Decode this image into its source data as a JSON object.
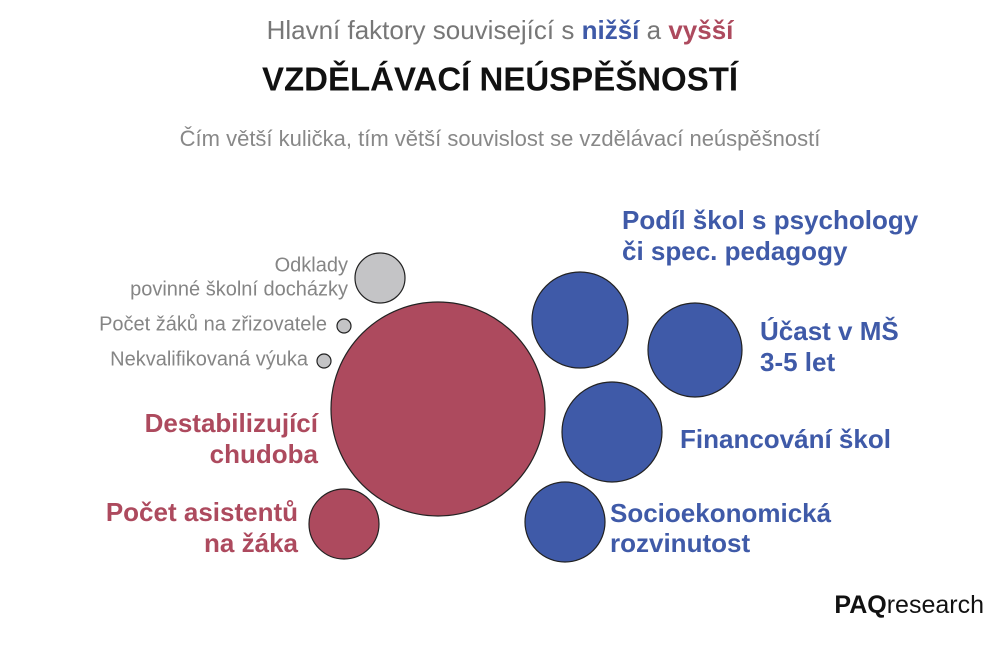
{
  "header": {
    "title_prefix": "Hlavní faktory související s",
    "title_lower": "nižší",
    "title_and": "a",
    "title_higher": "vyšší",
    "title_main": "VZDĚLÁVACÍ NEÚSPĚŠNOSTÍ",
    "subtitle": "Čím větší kulička, tím větší souvislost se vzdělávací neúspěšností"
  },
  "nodes": [
    {
      "label": [
        "Odklady",
        "povinné školní docházky"
      ]
    },
    {
      "label": [
        "Počet žáků na zřizovatele"
      ]
    },
    {
      "label": [
        "Nekvalifikovaná výuka"
      ]
    },
    {
      "label": [
        "Destabilizující",
        "chudoba"
      ]
    },
    {
      "label": [
        "Počet asistentů",
        "na žáka"
      ]
    },
    {
      "label": [
        "Podíl škol s psychology",
        "či spec. pedagogy"
      ]
    },
    {
      "label": [
        "Účast v MŠ",
        "3-5 let"
      ]
    },
    {
      "label": [
        "Financování škol"
      ]
    },
    {
      "label": [
        "Socioekonomická",
        "rozvinutost"
      ]
    }
  ],
  "logo": {
    "brand": "PAQ",
    "suffix": "research"
  }
}
